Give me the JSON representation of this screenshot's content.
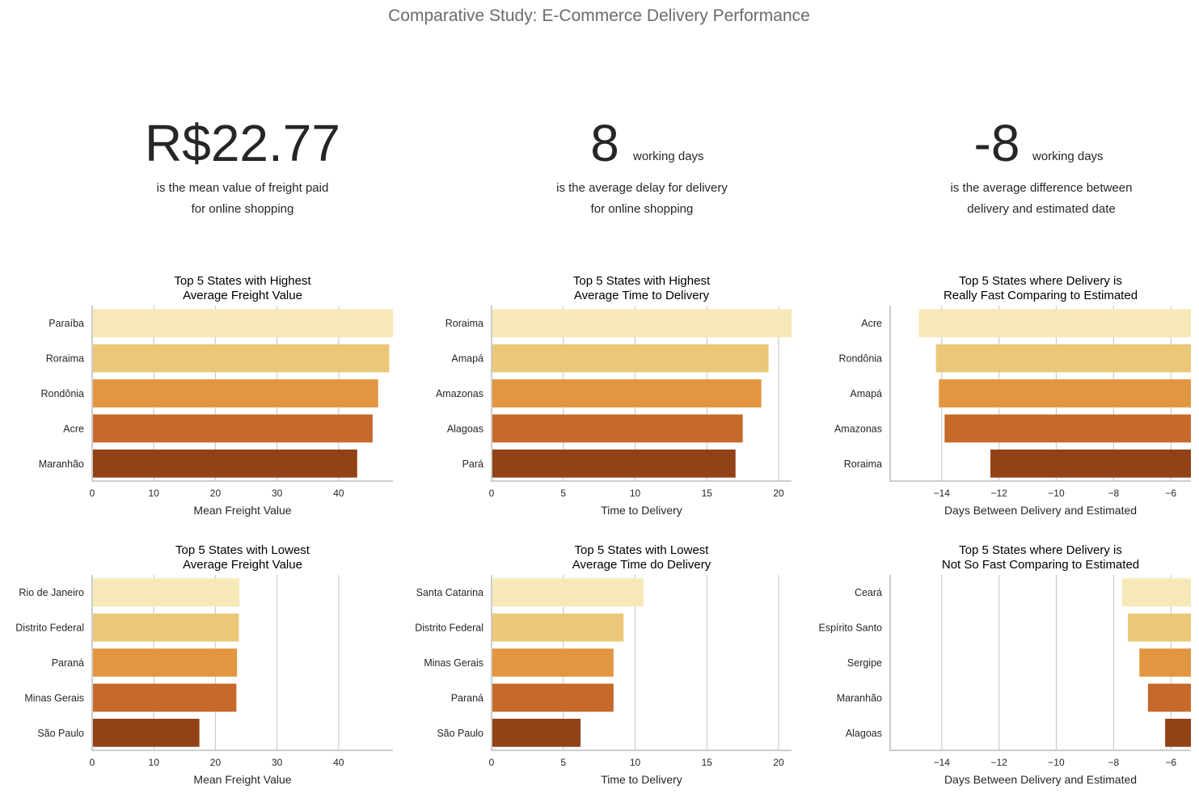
{
  "title": "Comparative Study: E-Commerce Delivery Performance",
  "kpis": [
    {
      "value": "R$22.77",
      "unit": "",
      "line1": "is the mean value of freight paid",
      "line2": "for online shopping"
    },
    {
      "value": "8",
      "unit": "working days",
      "line1": "is the average delay for delivery",
      "line2": "for online shopping"
    },
    {
      "value": "-8",
      "unit": "working days",
      "line1": "is the average difference between",
      "line2": "delivery and estimated date"
    }
  ],
  "palette": [
    "#f6e9b7",
    "#eac878",
    "#e29641",
    "#c6692a",
    "#924217"
  ],
  "chart_data": [
    {
      "type": "bar",
      "orientation": "horizontal",
      "title": "Top 5 States with Highest\nAverage Freight Value",
      "xlabel": "Mean Freight Value",
      "ylabel": "",
      "categories": [
        "Paraíba",
        "Roraima",
        "Rondônia",
        "Acre",
        "Maranhão"
      ],
      "values": [
        48.8,
        48.2,
        46.4,
        45.5,
        43.0
      ],
      "xlim": [
        0,
        48.8
      ],
      "xticks": [
        0,
        10,
        20,
        30,
        40
      ],
      "grid": true
    },
    {
      "type": "bar",
      "orientation": "horizontal",
      "title": "Top 5 States with Highest\nAverage Time to Delivery",
      "xlabel": "Time to Delivery",
      "ylabel": "",
      "categories": [
        "Roraima",
        "Amapá",
        "Amazonas",
        "Alagoas",
        "Pará"
      ],
      "values": [
        20.9,
        19.3,
        18.8,
        17.5,
        17.0
      ],
      "xlim": [
        0,
        20.9
      ],
      "xticks": [
        0,
        5,
        10,
        15,
        20
      ],
      "grid": true
    },
    {
      "type": "bar",
      "orientation": "horizontal",
      "title": "Top 5 States where Delivery is\nReally Fast Comparing to Estimated",
      "xlabel": "Days Between Delivery and Estimated",
      "ylabel": "",
      "categories": [
        "Acre",
        "Rondônia",
        "Amapá",
        "Amazonas",
        "Roraima"
      ],
      "values": [
        -14.8,
        -14.2,
        -14.1,
        -13.9,
        -12.3
      ],
      "xlim": [
        -15.8,
        -5.3
      ],
      "xticks": [
        -14,
        -12,
        -10,
        -8,
        -6
      ],
      "grid": true
    },
    {
      "type": "bar",
      "orientation": "horizontal",
      "title": "Top 5 States with Lowest\nAverage Freight Value",
      "xlabel": "Mean Freight Value",
      "ylabel": "",
      "categories": [
        "Rio de Janeiro",
        "Distrito Federal",
        "Paraná",
        "Minas Gerais",
        "São Paulo"
      ],
      "values": [
        23.9,
        23.8,
        23.5,
        23.4,
        17.4
      ],
      "xlim": [
        0,
        48.8
      ],
      "xticks": [
        0,
        10,
        20,
        30,
        40
      ],
      "grid": true
    },
    {
      "type": "bar",
      "orientation": "horizontal",
      "title": "Top 5 States with Lowest\nAverage Time do Delivery",
      "xlabel": "Time to Delivery",
      "ylabel": "",
      "categories": [
        "Santa Catarina",
        "Distrito Federal",
        "Minas Gerais",
        "Paraná",
        "São Paulo"
      ],
      "values": [
        10.6,
        9.2,
        8.5,
        8.5,
        6.2
      ],
      "xlim": [
        0,
        20.9
      ],
      "xticks": [
        0,
        5,
        10,
        15,
        20
      ],
      "grid": true
    },
    {
      "type": "bar",
      "orientation": "horizontal",
      "title": "Top 5 States where Delivery is\nNot So Fast Comparing to Estimated",
      "xlabel": "Days Between Delivery and Estimated",
      "ylabel": "",
      "categories": [
        "Ceará",
        "Espírito Santo",
        "Sergipe",
        "Maranhão",
        "Alagoas"
      ],
      "values": [
        -7.7,
        -7.5,
        -7.1,
        -6.8,
        -6.2
      ],
      "xlim": [
        -15.8,
        -5.3
      ],
      "xticks": [
        -14,
        -12,
        -10,
        -8,
        -6
      ],
      "grid": true
    }
  ]
}
